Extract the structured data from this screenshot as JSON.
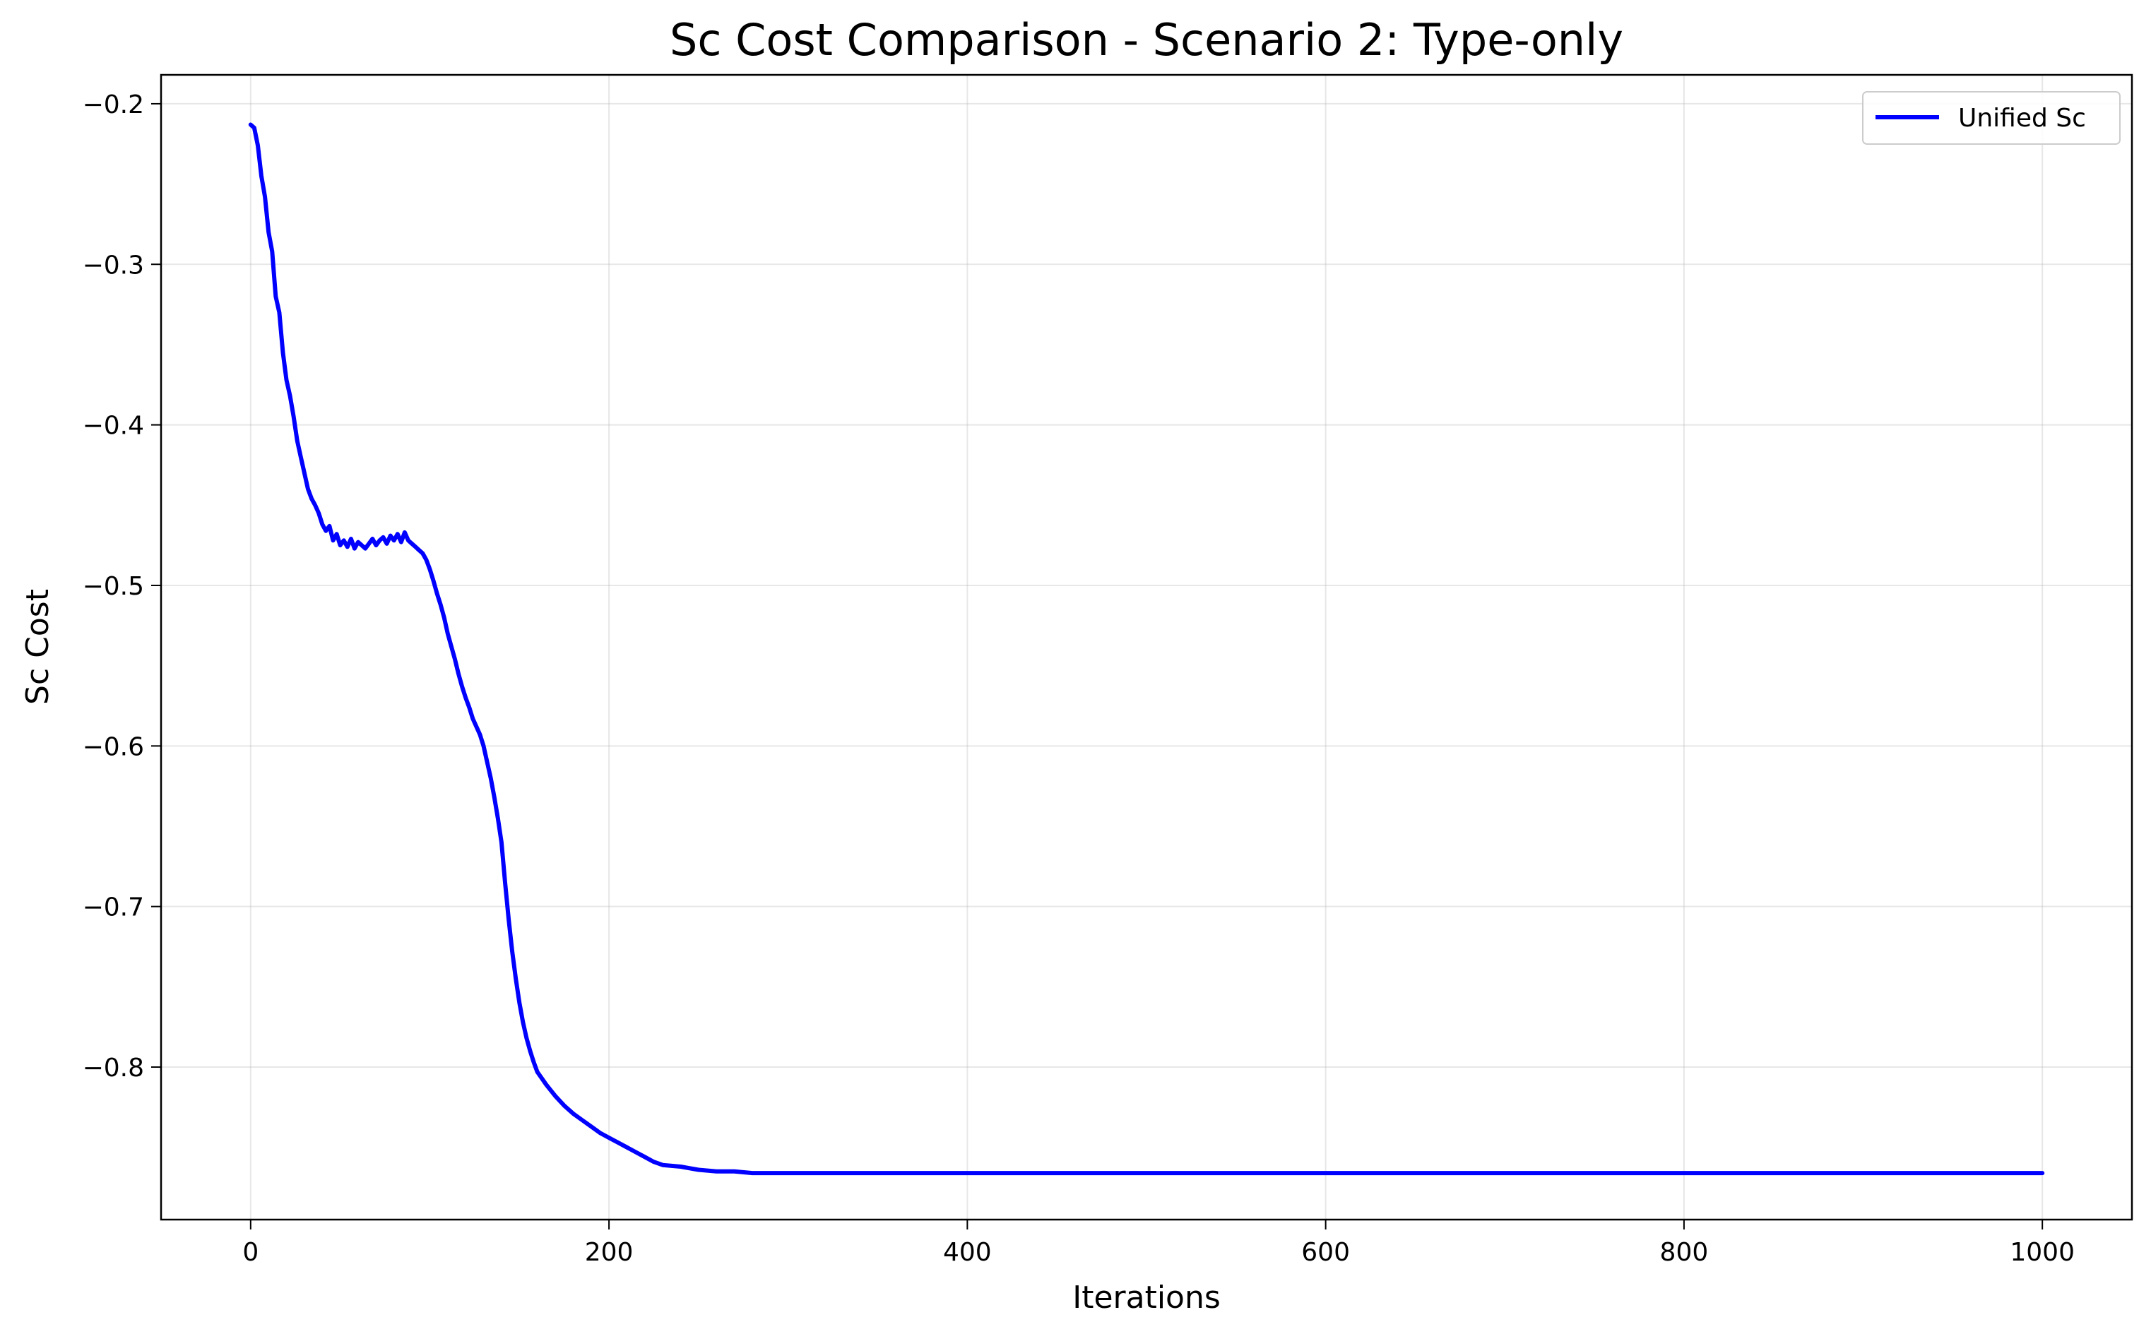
{
  "chart_data": {
    "type": "line",
    "title": "Sc Cost Comparison - Scenario 2: Type-only",
    "xlabel": "Iterations",
    "ylabel": "Sc Cost",
    "xlim": [
      -50,
      1050
    ],
    "ylim": [
      -0.895,
      -0.182
    ],
    "xticks": [
      0,
      200,
      400,
      600,
      800,
      1000
    ],
    "xtick_labels": [
      "0",
      "200",
      "400",
      "600",
      "800",
      "1000"
    ],
    "yticks": [
      -0.2,
      -0.3,
      -0.4,
      -0.5,
      -0.6,
      -0.7,
      -0.8
    ],
    "ytick_labels": [
      "−0.2",
      "−0.3",
      "−0.4",
      "−0.5",
      "−0.6",
      "−0.7",
      "−0.8"
    ],
    "grid": true,
    "legend_position": "top-right",
    "series": [
      {
        "name": "Unified Sc",
        "color": "#0000ff",
        "x": [
          0,
          2,
          4,
          6,
          8,
          10,
          12,
          14,
          16,
          18,
          20,
          22,
          24,
          26,
          28,
          30,
          32,
          34,
          36,
          38,
          40,
          42,
          44,
          46,
          48,
          50,
          52,
          54,
          56,
          58,
          60,
          62,
          64,
          66,
          68,
          70,
          72,
          74,
          76,
          78,
          80,
          82,
          84,
          86,
          88,
          90,
          92,
          94,
          96,
          98,
          100,
          102,
          104,
          106,
          108,
          110,
          112,
          114,
          116,
          118,
          120,
          122,
          124,
          126,
          128,
          130,
          132,
          134,
          136,
          138,
          140,
          142,
          144,
          146,
          148,
          150,
          152,
          154,
          156,
          158,
          160,
          165,
          170,
          175,
          180,
          185,
          190,
          195,
          200,
          205,
          210,
          215,
          220,
          225,
          230,
          240,
          250,
          260,
          270,
          280,
          290,
          300,
          320,
          340,
          360,
          380,
          400,
          430,
          460,
          500,
          550,
          600,
          700,
          800,
          900,
          1000
        ],
        "y": [
          -0.213,
          -0.215,
          -0.226,
          -0.245,
          -0.258,
          -0.28,
          -0.292,
          -0.32,
          -0.33,
          -0.355,
          -0.372,
          -0.382,
          -0.395,
          -0.41,
          -0.42,
          -0.43,
          -0.44,
          -0.446,
          -0.45,
          -0.455,
          -0.462,
          -0.466,
          -0.463,
          -0.472,
          -0.468,
          -0.475,
          -0.472,
          -0.476,
          -0.471,
          -0.477,
          -0.473,
          -0.475,
          -0.477,
          -0.474,
          -0.471,
          -0.475,
          -0.472,
          -0.47,
          -0.474,
          -0.469,
          -0.472,
          -0.468,
          -0.473,
          -0.467,
          -0.472,
          -0.474,
          -0.476,
          -0.478,
          -0.48,
          -0.484,
          -0.49,
          -0.497,
          -0.505,
          -0.512,
          -0.52,
          -0.53,
          -0.538,
          -0.546,
          -0.555,
          -0.563,
          -0.57,
          -0.576,
          -0.583,
          -0.588,
          -0.593,
          -0.6,
          -0.61,
          -0.62,
          -0.632,
          -0.645,
          -0.66,
          -0.685,
          -0.708,
          -0.728,
          -0.745,
          -0.76,
          -0.772,
          -0.782,
          -0.79,
          -0.797,
          -0.803,
          -0.811,
          -0.818,
          -0.824,
          -0.829,
          -0.833,
          -0.837,
          -0.841,
          -0.844,
          -0.847,
          -0.85,
          -0.853,
          -0.856,
          -0.859,
          -0.861,
          -0.862,
          -0.864,
          -0.865,
          -0.865,
          -0.866,
          -0.866,
          -0.866,
          -0.866,
          -0.866,
          -0.866,
          -0.866,
          -0.866,
          -0.866,
          -0.866,
          -0.866,
          -0.866,
          -0.866,
          -0.866,
          -0.866,
          -0.866,
          -0.866
        ]
      }
    ]
  }
}
